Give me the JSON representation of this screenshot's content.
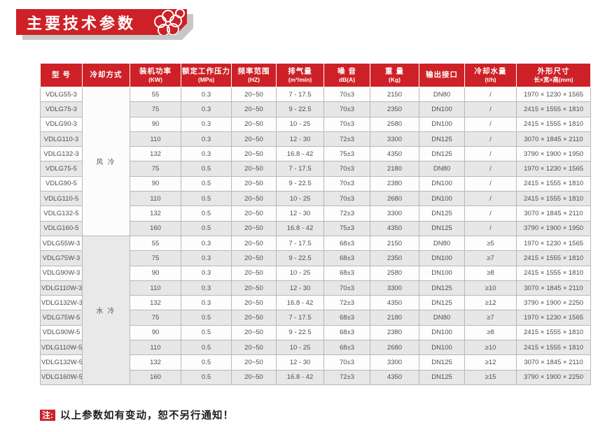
{
  "banner": {
    "title": "主要技术参数"
  },
  "note": {
    "label": "注:",
    "text": "以上参数如有变动，恕不另行通知！"
  },
  "colors": {
    "accent_red": "#cd2127",
    "row_stripe": "#e7e7e7",
    "cell_border": "#b8b8b8",
    "banner_shadow": "#c7c7c7"
  },
  "icons": {
    "banner_decoration": "flower-rings-icon"
  },
  "table": {
    "headers": [
      {
        "t": "型  号",
        "u": ""
      },
      {
        "t": "冷却方式",
        "u": ""
      },
      {
        "t": "装机功率",
        "u": "(KW)"
      },
      {
        "t": "额定工作压力",
        "u": "(MPa)"
      },
      {
        "t": "频率范围",
        "u": "(HZ)"
      },
      {
        "t": "排气量",
        "u": "(m³/min)"
      },
      {
        "t": "噪  音",
        "u": "dB(A)"
      },
      {
        "t": "重  量",
        "u": "(Kg)"
      },
      {
        "t": "输出接口",
        "u": ""
      },
      {
        "t": "冷却水量",
        "u": "(t/h)"
      },
      {
        "t": "外形尺寸",
        "u": "长×宽×高(mm)"
      }
    ],
    "groups": [
      {
        "cooling": "风 冷",
        "rows": [
          {
            "model": "VDLG55-3",
            "power": "55",
            "pressure": "0.3",
            "freq": "20~50",
            "disp": "7 - 17.5",
            "noise": "70±3",
            "weight": "2150",
            "port": "DN80",
            "water": "/",
            "dims": "1970 × 1230 × 1565"
          },
          {
            "model": "VDLG75-3",
            "power": "75",
            "pressure": "0.3",
            "freq": "20~50",
            "disp": "9 - 22.5",
            "noise": "70±3",
            "weight": "2350",
            "port": "DN100",
            "water": "/",
            "dims": "2415 × 1555 × 1810"
          },
          {
            "model": "VDLG90-3",
            "power": "90",
            "pressure": "0.3",
            "freq": "20~50",
            "disp": "10 - 25",
            "noise": "70±3",
            "weight": "2580",
            "port": "DN100",
            "water": "/",
            "dims": "2415 × 1555 × 1810"
          },
          {
            "model": "VDLG110-3",
            "power": "110",
            "pressure": "0.3",
            "freq": "20~50",
            "disp": "12 - 30",
            "noise": "72±3",
            "weight": "3300",
            "port": "DN125",
            "water": "/",
            "dims": "3070 × 1845 × 2110"
          },
          {
            "model": "VDLG132-3",
            "power": "132",
            "pressure": "0.3",
            "freq": "20~50",
            "disp": "16.8 - 42",
            "noise": "75±3",
            "weight": "4350",
            "port": "DN125",
            "water": "/",
            "dims": "3790 × 1900 × 1950"
          },
          {
            "model": "VDLG75-5",
            "power": "75",
            "pressure": "0.5",
            "freq": "20~50",
            "disp": "7 - 17.5",
            "noise": "70±3",
            "weight": "2180",
            "port": "DN80",
            "water": "/",
            "dims": "1970 × 1230 × 1565"
          },
          {
            "model": "VDLG90-5",
            "power": "90",
            "pressure": "0.5",
            "freq": "20~50",
            "disp": "9 - 22.5",
            "noise": "70±3",
            "weight": "2380",
            "port": "DN100",
            "water": "/",
            "dims": "2415 × 1555 × 1810"
          },
          {
            "model": "VDLG110-5",
            "power": "110",
            "pressure": "0.5",
            "freq": "20~50",
            "disp": "10 - 25",
            "noise": "70±3",
            "weight": "2680",
            "port": "DN100",
            "water": "/",
            "dims": "2415 × 1555 × 1810"
          },
          {
            "model": "VDLG132-5",
            "power": "132",
            "pressure": "0.5",
            "freq": "20~50",
            "disp": "12 - 30",
            "noise": "72±3",
            "weight": "3300",
            "port": "DN125",
            "water": "/",
            "dims": "3070 × 1845 × 2110"
          },
          {
            "model": "VDLG160-5",
            "power": "160",
            "pressure": "0.5",
            "freq": "20~50",
            "disp": "16.8 - 42",
            "noise": "75±3",
            "weight": "4350",
            "port": "DN125",
            "water": "/",
            "dims": "3790 × 1900 × 1950"
          }
        ]
      },
      {
        "cooling": "水 冷",
        "rows": [
          {
            "model": "VDLG55W-3",
            "power": "55",
            "pressure": "0.3",
            "freq": "20~50",
            "disp": "7 - 17.5",
            "noise": "68±3",
            "weight": "2150",
            "port": "DN80",
            "water": "≥5",
            "dims": "1970 × 1230 × 1565"
          },
          {
            "model": "VDLG75W-3",
            "power": "75",
            "pressure": "0.3",
            "freq": "20~50",
            "disp": "9 - 22.5",
            "noise": "68±3",
            "weight": "2350",
            "port": "DN100",
            "water": "≥7",
            "dims": "2415 × 1555 × 1810"
          },
          {
            "model": "VDLG90W-3",
            "power": "90",
            "pressure": "0.3",
            "freq": "20~50",
            "disp": "10 - 25",
            "noise": "68±3",
            "weight": "2580",
            "port": "DN100",
            "water": "≥8",
            "dims": "2415 × 1555 × 1810"
          },
          {
            "model": "VDLG110W-3",
            "power": "110",
            "pressure": "0.3",
            "freq": "20~50",
            "disp": "12 - 30",
            "noise": "70±3",
            "weight": "3300",
            "port": "DN125",
            "water": "≥10",
            "dims": "3070 × 1845 × 2110"
          },
          {
            "model": "VDLG132W-3",
            "power": "132",
            "pressure": "0.3",
            "freq": "20~50",
            "disp": "16.8 - 42",
            "noise": "72±3",
            "weight": "4350",
            "port": "DN125",
            "water": "≥12",
            "dims": "3790 × 1900 × 2250"
          },
          {
            "model": "VDLG75W-5",
            "power": "75",
            "pressure": "0.5",
            "freq": "20~50",
            "disp": "7 - 17.5",
            "noise": "68±3",
            "weight": "2180",
            "port": "DN80",
            "water": "≥7",
            "dims": "1970 × 1230 × 1565"
          },
          {
            "model": "VDLG90W-5",
            "power": "90",
            "pressure": "0.5",
            "freq": "20~50",
            "disp": "9 - 22.5",
            "noise": "68±3",
            "weight": "2380",
            "port": "DN100",
            "water": "≥8",
            "dims": "2415 × 1555 × 1810"
          },
          {
            "model": "VDLG110W-5",
            "power": "110",
            "pressure": "0.5",
            "freq": "20~50",
            "disp": "10 - 25",
            "noise": "68±3",
            "weight": "2680",
            "port": "DN100",
            "water": "≥10",
            "dims": "2415 × 1555 × 1810"
          },
          {
            "model": "VDLG132W-5",
            "power": "132",
            "pressure": "0.5",
            "freq": "20~50",
            "disp": "12 - 30",
            "noise": "70±3",
            "weight": "3300",
            "port": "DN125",
            "water": "≥12",
            "dims": "3070 × 1845 × 2110"
          },
          {
            "model": "VDLG160W-5",
            "power": "160",
            "pressure": "0.5",
            "freq": "20~50",
            "disp": "16.8 - 42",
            "noise": "72±3",
            "weight": "4350",
            "port": "DN125",
            "water": "≥15",
            "dims": "3790 × 1900 × 2250"
          }
        ]
      }
    ]
  }
}
